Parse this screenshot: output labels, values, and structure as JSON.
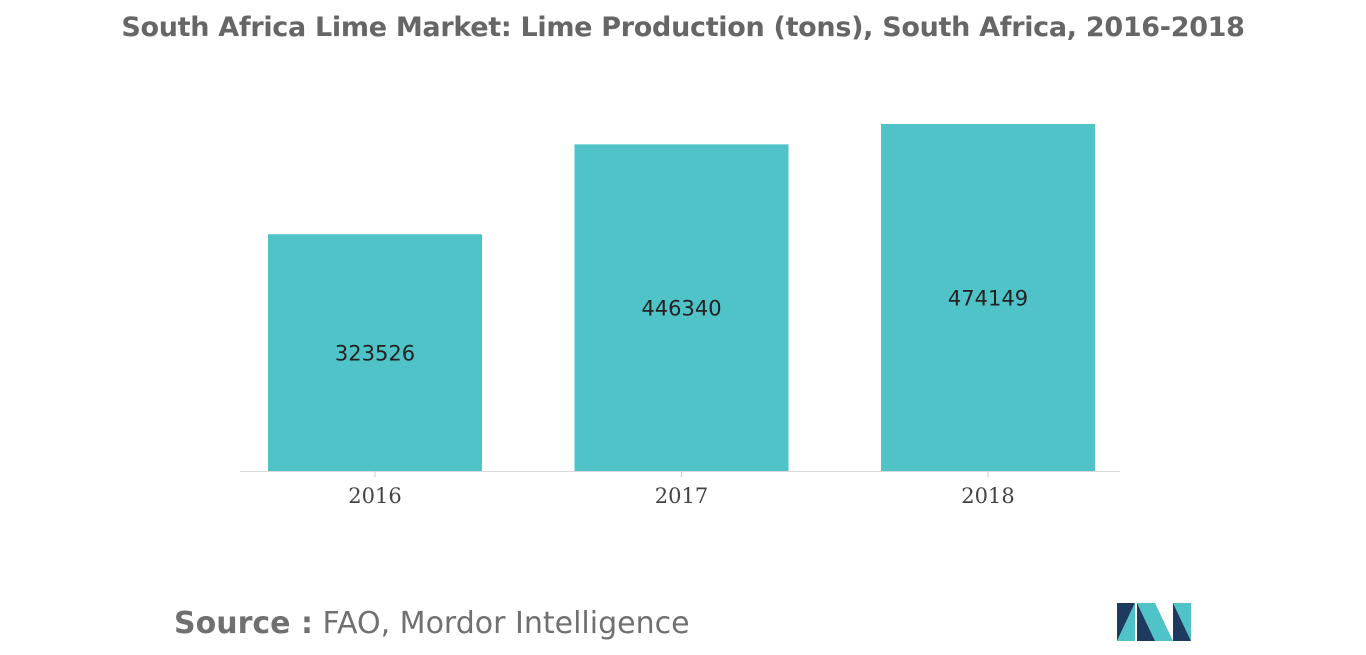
{
  "chart_data": {
    "type": "bar",
    "title": "South Africa Lime Market: Lime Production (tons), South Africa, 2016-2018",
    "categories": [
      "2016",
      "2017",
      "2018"
    ],
    "values": [
      323526,
      446340,
      474149
    ],
    "data_labels": [
      "323526",
      "446340",
      "474149"
    ],
    "xlabel": "",
    "ylabel": "",
    "ylim": [
      0,
      500000
    ],
    "grid": false,
    "legend": "none",
    "bar_color": "#50C3C9"
  },
  "source": {
    "label": "Source :",
    "text": "FAO, Mordor Intelligence"
  },
  "logo": {
    "icon": "mordor-intelligence-logo-icon",
    "colors": [
      "#1F3A5F",
      "#50C3C9"
    ]
  }
}
